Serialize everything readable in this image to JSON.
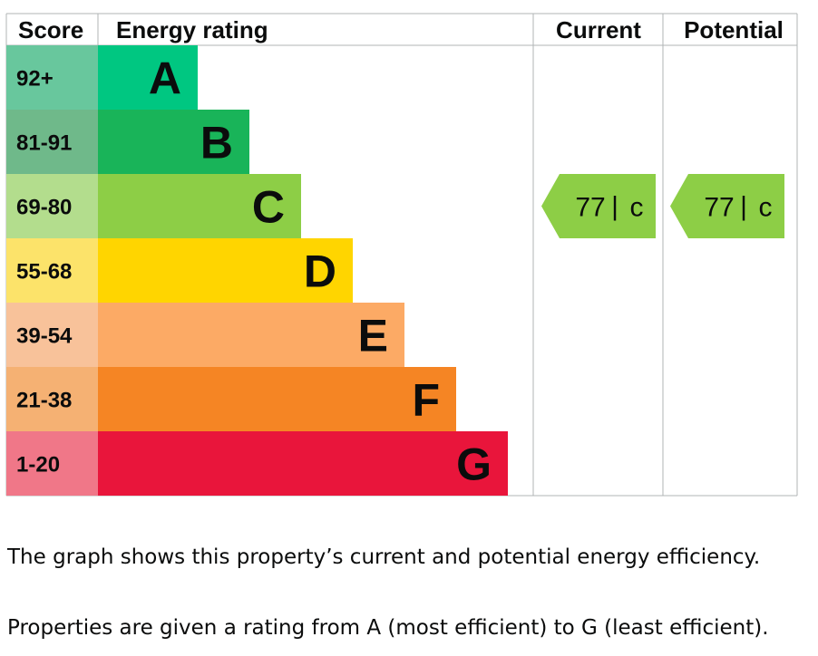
{
  "headers": {
    "score": "Score",
    "rating": "Energy rating",
    "current": "Current",
    "potential": "Potential"
  },
  "chart_data": {
    "type": "bar",
    "categories": [
      "A",
      "B",
      "C",
      "D",
      "E",
      "F",
      "G"
    ],
    "score_ranges": [
      "92+",
      "81-91",
      "69-80",
      "55-68",
      "39-54",
      "21-38",
      "1-20"
    ],
    "colors": [
      "#00c781",
      "#19b459",
      "#8dce46",
      "#ffd500",
      "#fcaa65",
      "#f58524",
      "#e9153b"
    ],
    "score_colors": [
      "#68c79d",
      "#6fb98a",
      "#b3dd8d",
      "#fce36a",
      "#f8c29a",
      "#f5b173",
      "#f07788"
    ],
    "current": {
      "score": "77",
      "band": "C",
      "color": "#8dce46"
    },
    "potential": {
      "score": "77",
      "band": "C",
      "color": "#8dce46"
    }
  },
  "captions": {
    "line1": "The graph shows this property’s current and potential energy efficiency.",
    "line2": "Properties are given a rating from A (most efficient) to G (least efficient)."
  }
}
